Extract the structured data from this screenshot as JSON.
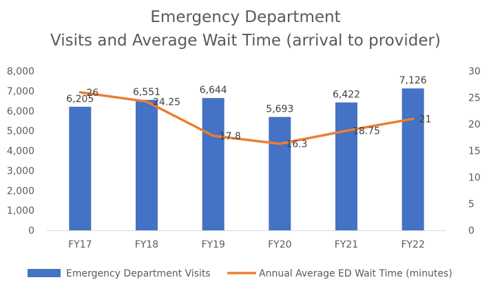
{
  "chart_data": {
    "type": "bar",
    "title": [
      "Emergency Department",
      "Visits and Average Wait Time (arrival to provider)"
    ],
    "categories": [
      "FY17",
      "FY18",
      "FY19",
      "FY20",
      "FY21",
      "FY22"
    ],
    "series": [
      {
        "name": "Emergency Department Visits",
        "type": "bar",
        "axis": "left",
        "color": "#4472C4",
        "values": [
          6205,
          6551,
          6644,
          5693,
          6422,
          7126
        ],
        "labels": [
          "6,205",
          "6,551",
          "6,644",
          "5,693",
          "6,422",
          "7,126"
        ]
      },
      {
        "name": "Annual Average ED Wait Time (minutes)",
        "type": "line",
        "axis": "right",
        "color": "#ED7D31",
        "values": [
          26,
          24.25,
          17.8,
          16.3,
          18.75,
          21
        ],
        "labels": [
          "26",
          "24.25",
          "17.8",
          "16.3",
          "18.75",
          "21"
        ]
      }
    ],
    "y_left": {
      "ylim": [
        0,
        8000
      ],
      "ticks": [
        "0",
        "1,000",
        "2,000",
        "3,000",
        "4,000",
        "5,000",
        "6,000",
        "7,000",
        "8,000"
      ]
    },
    "y_right": {
      "ylim": [
        0,
        30
      ],
      "ticks": [
        "0",
        "5",
        "10",
        "15",
        "20",
        "25",
        "30"
      ]
    },
    "grid": false,
    "legend": "bottom"
  }
}
